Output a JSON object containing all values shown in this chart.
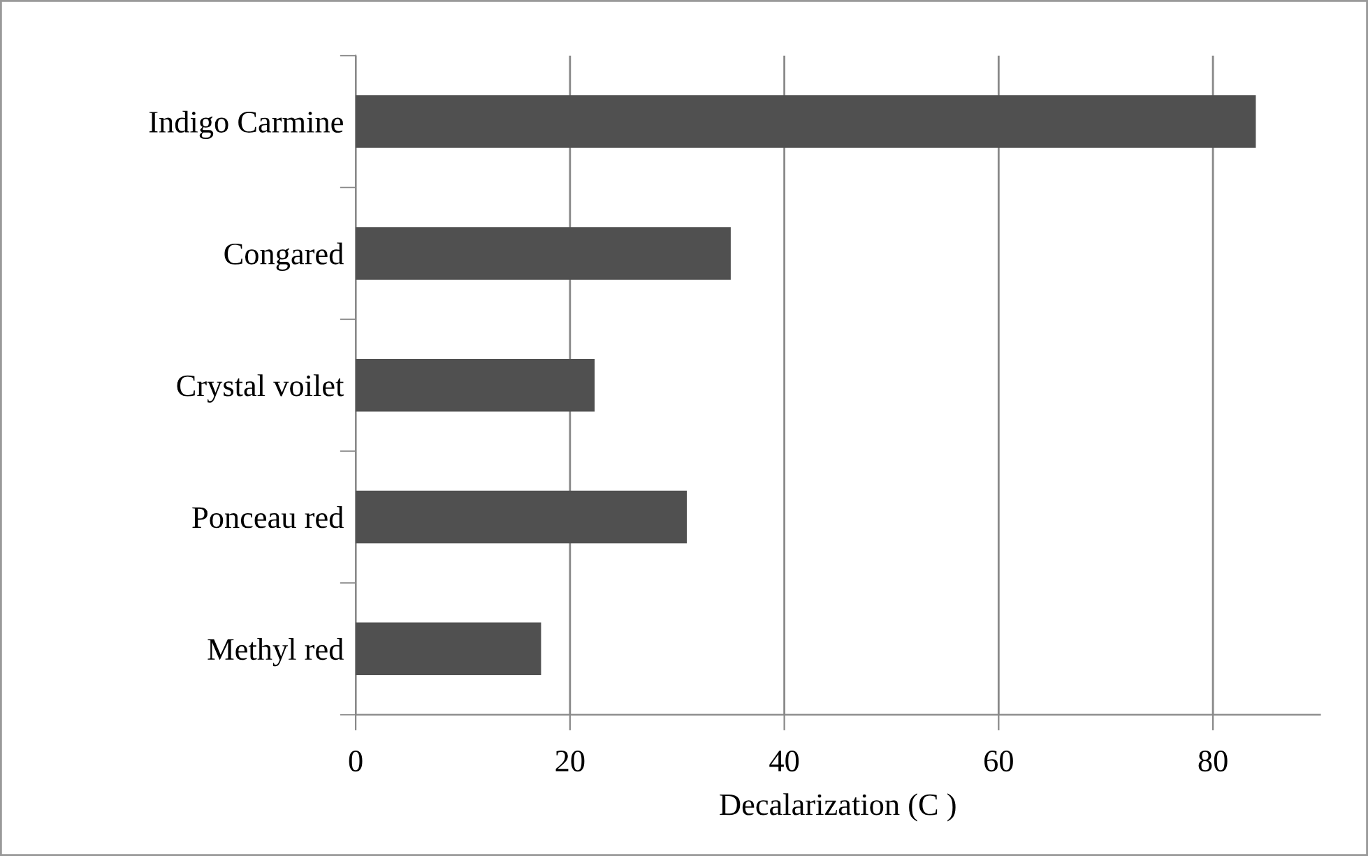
{
  "chart_data": {
    "type": "bar",
    "orientation": "horizontal",
    "xlabel": "Decalarization (C )",
    "categories": [
      "Indigo Carmine",
      "Congared",
      "Crystal voilet",
      "Ponceau red",
      "Methyl red"
    ],
    "values": [
      84.0,
      35.0,
      22.3,
      30.9,
      17.3
    ],
    "color": "#505050",
    "xlim": [
      0,
      90
    ],
    "xticks": [
      0,
      20,
      40,
      60,
      80
    ],
    "grid": "x",
    "legend": false
  }
}
